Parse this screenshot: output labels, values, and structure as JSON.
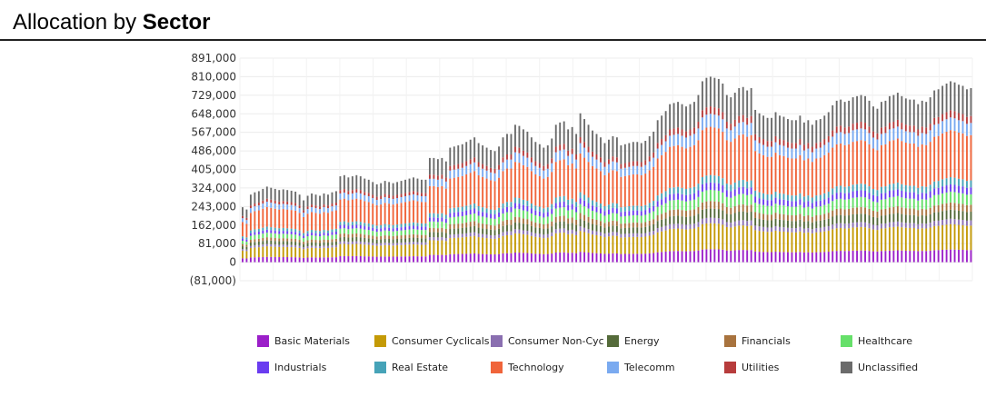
{
  "header": {
    "title_prefix": "Allocation by",
    "title_bold": "Sector"
  },
  "chart_data": {
    "type": "bar",
    "stacked": true,
    "title": "Allocation by Sector",
    "xlabel": "",
    "ylabel": "",
    "ylim": [
      -81000,
      891000
    ],
    "yticks": [
      891000,
      810000,
      729000,
      648000,
      567000,
      486000,
      405000,
      324000,
      243000,
      162000,
      81000,
      0,
      -81000
    ],
    "ytick_labels": [
      "891,000",
      "810,000",
      "729,000",
      "648,000",
      "567,000",
      "486,000",
      "405,000",
      "324,000",
      "243,000",
      "162,000",
      "81,000",
      "0",
      "(81,000)"
    ],
    "grid": true,
    "legend_position": "bottom",
    "series_order": [
      "Basic Materials",
      "Consumer Cyclicals",
      "Consumer Non-Cyc",
      "Energy",
      "Financials",
      "Healthcare",
      "Industrials",
      "Real Estate",
      "Technology",
      "Telecomm",
      "Utilities",
      "Unclassified"
    ],
    "legend": [
      {
        "name": "Basic Materials",
        "color": "#9b1fc9"
      },
      {
        "name": "Consumer Cyclicals",
        "color": "#c49a06"
      },
      {
        "name": "Consumer Non-Cyc",
        "color": "#8a6fb0"
      },
      {
        "name": "Energy",
        "color": "#556b3a"
      },
      {
        "name": "Financials",
        "color": "#a8733e"
      },
      {
        "name": "Healthcare",
        "color": "#66e06a"
      },
      {
        "name": "Industrials",
        "color": "#6a3cf0"
      },
      {
        "name": "Real Estate",
        "color": "#46a3b8"
      },
      {
        "name": "Technology",
        "color": "#f0643a"
      },
      {
        "name": "Telecomm",
        "color": "#7aaaf0"
      },
      {
        "name": "Utilities",
        "color": "#b73c3c"
      },
      {
        "name": "Unclassified",
        "color": "#6b6b6b"
      }
    ],
    "totals": [
      240000,
      230000,
      295000,
      305000,
      310000,
      320000,
      330000,
      325000,
      320000,
      315000,
      318000,
      315000,
      312000,
      308000,
      295000,
      270000,
      290000,
      300000,
      295000,
      290000,
      300000,
      295000,
      305000,
      310000,
      375000,
      380000,
      370000,
      375000,
      380000,
      375000,
      365000,
      360000,
      350000,
      340000,
      345000,
      355000,
      350000,
      345000,
      350000,
      355000,
      360000,
      365000,
      370000,
      365000,
      360000,
      360000,
      455000,
      455000,
      450000,
      455000,
      440000,
      500000,
      505000,
      510000,
      515000,
      525000,
      535000,
      545000,
      520000,
      510000,
      500000,
      490000,
      485000,
      505000,
      545000,
      560000,
      560000,
      600000,
      595000,
      580000,
      570000,
      545000,
      525000,
      515000,
      500000,
      510000,
      540000,
      600000,
      610000,
      615000,
      580000,
      590000,
      560000,
      650000,
      625000,
      600000,
      575000,
      560000,
      545000,
      520000,
      535000,
      550000,
      545000,
      510000,
      515000,
      520000,
      525000,
      525000,
      520000,
      530000,
      550000,
      570000,
      620000,
      640000,
      660000,
      690000,
      695000,
      700000,
      690000,
      680000,
      690000,
      700000,
      730000,
      790000,
      805000,
      810000,
      805000,
      800000,
      780000,
      730000,
      720000,
      740000,
      760000,
      765000,
      750000,
      760000,
      665000,
      650000,
      640000,
      630000,
      630000,
      655000,
      640000,
      635000,
      625000,
      620000,
      620000,
      640000,
      610000,
      620000,
      600000,
      620000,
      625000,
      640000,
      655000,
      685000,
      705000,
      710000,
      700000,
      705000,
      720000,
      725000,
      730000,
      725000,
      705000,
      680000,
      670000,
      700000,
      705000,
      725000,
      730000,
      740000,
      725000,
      715000,
      710000,
      710000,
      690000,
      705000,
      700000,
      720000,
      750000,
      755000,
      770000,
      780000,
      790000,
      785000,
      775000,
      770000,
      755000,
      760000
    ],
    "series_shares": [
      0.07,
      0.14,
      0.03,
      0.05,
      0.04,
      0.06,
      0.04,
      0.04,
      0.26,
      0.07,
      0.04,
      0.16
    ]
  },
  "legend_labels": [
    "Basic Materials",
    "Consumer Cyclicals",
    "Consumer Non-Cyc",
    "Energy",
    "Financials",
    "Healthcare",
    "Industrials",
    "Real Estate",
    "Technology",
    "Telecomm",
    "Utilities",
    "Unclassified"
  ]
}
